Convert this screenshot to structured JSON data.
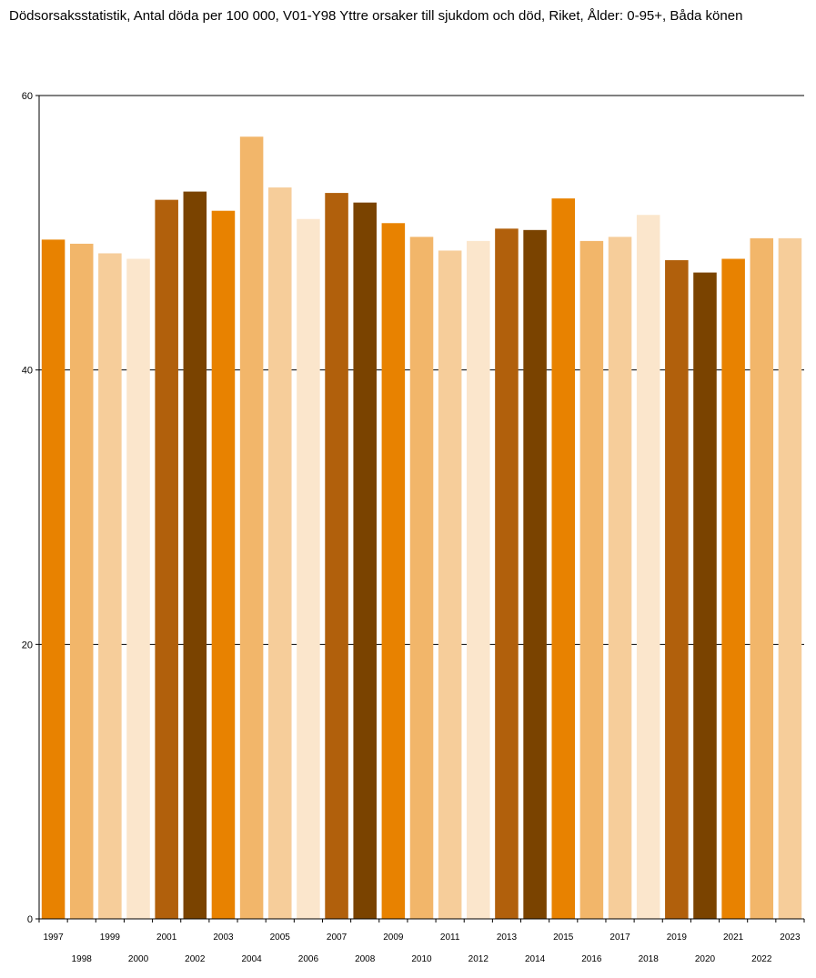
{
  "title": "Dödsorsaksstatistik, Antal döda per 100 000, V01-Y98 Yttre orsaker till sjukdom och död, Riket, Ålder: 0-95+, Båda könen",
  "chart_data": {
    "type": "bar",
    "title": "Dödsorsaksstatistik, Antal döda per 100 000, V01-Y98 Yttre orsaker till sjukdom och död, Riket, Ålder: 0-95+, Båda könen",
    "xlabel": "",
    "ylabel": "",
    "ylim": [
      0,
      60
    ],
    "yticks": [
      0,
      20,
      40,
      60
    ],
    "grid": true,
    "categories": [
      "1997",
      "1998",
      "1999",
      "2000",
      "2001",
      "2002",
      "2003",
      "2004",
      "2005",
      "2006",
      "2007",
      "2008",
      "2009",
      "2010",
      "2011",
      "2012",
      "2013",
      "2014",
      "2015",
      "2016",
      "2017",
      "2018",
      "2019",
      "2020",
      "2021",
      "2022",
      "2023"
    ],
    "values": [
      49.5,
      49.2,
      48.5,
      48.1,
      52.4,
      53.0,
      51.6,
      57.0,
      53.3,
      51.0,
      52.9,
      52.2,
      50.7,
      49.7,
      48.7,
      49.4,
      50.3,
      50.2,
      52.5,
      49.4,
      49.7,
      51.3,
      48.0,
      47.1,
      48.1,
      49.6,
      49.6
    ],
    "colors": [
      "#e88200",
      "#f2b66a",
      "#f6cd9a",
      "#fbe6cc",
      "#b1600c",
      "#7a4300"
    ]
  }
}
